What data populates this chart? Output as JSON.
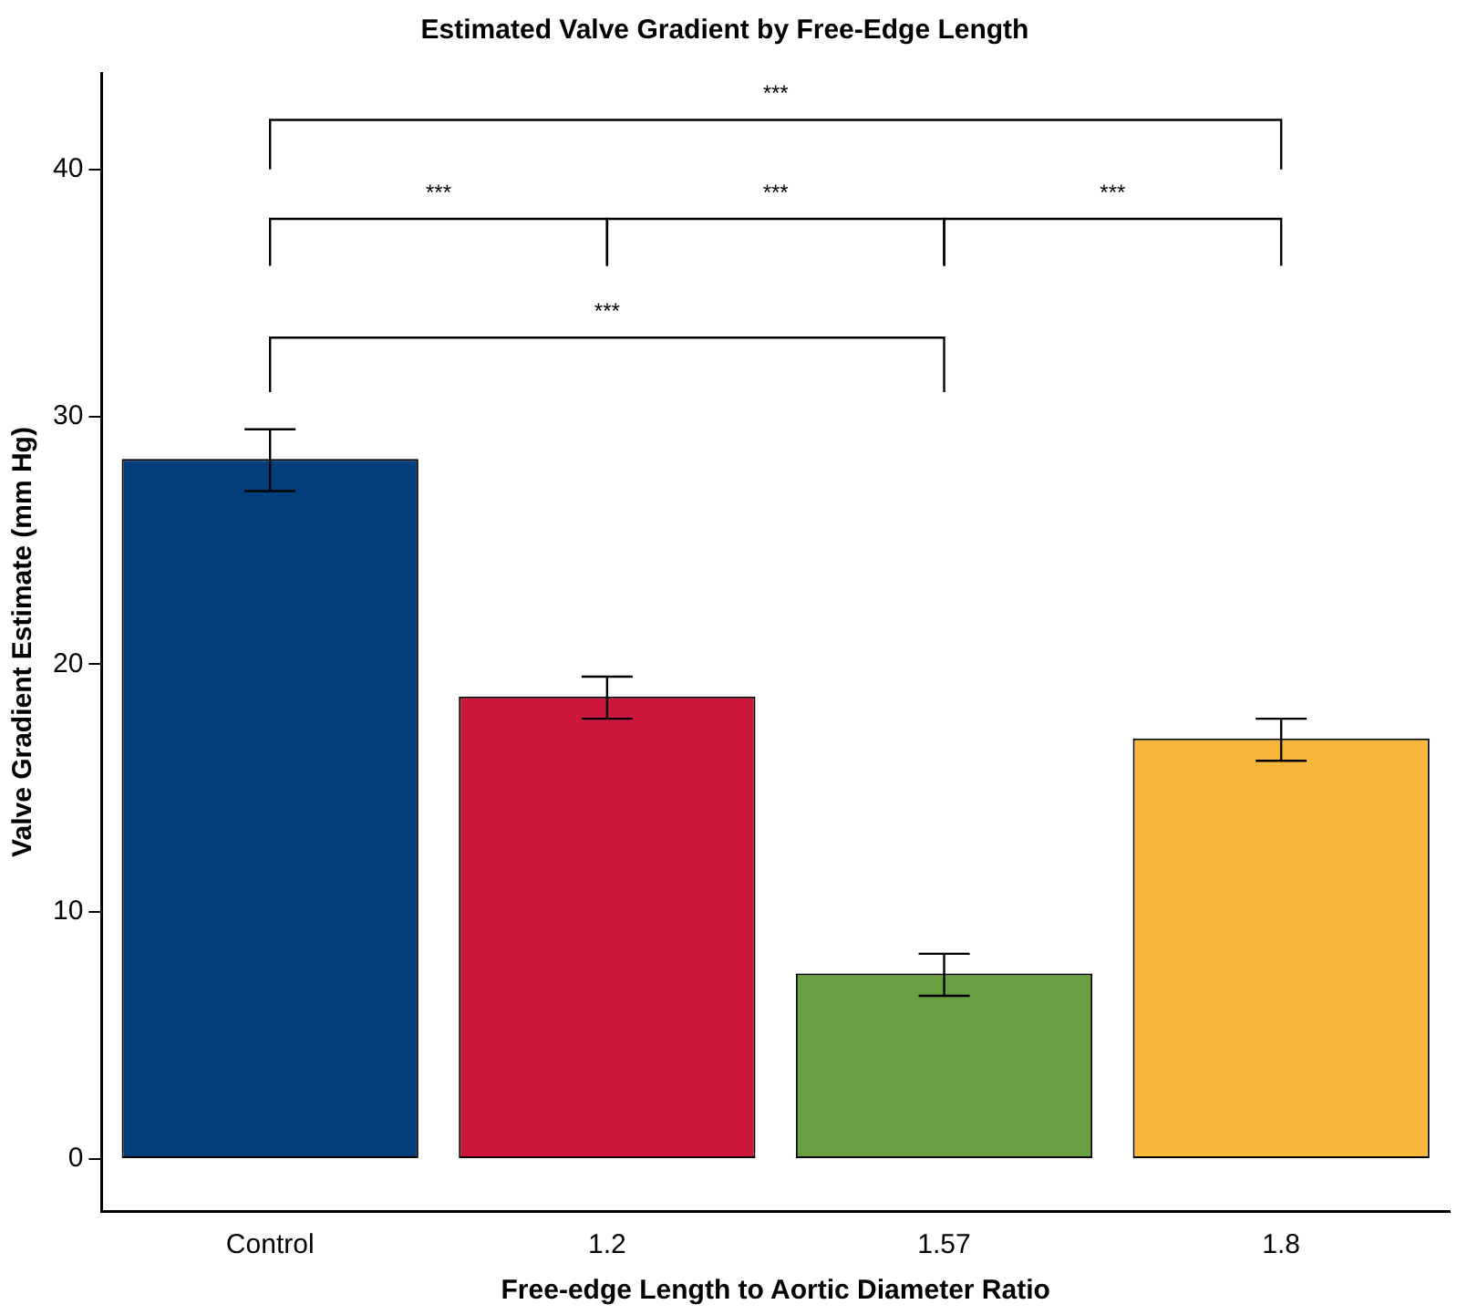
{
  "chart_data": {
    "type": "bar",
    "title": "Estimated Valve Gradient by Free-Edge Length",
    "xlabel": "Free-edge Length to Aortic Diameter Ratio",
    "ylabel": "Valve Gradient Estimate (mm Hg)",
    "categories": [
      "Control",
      "1.2",
      "1.57",
      "1.8"
    ],
    "values": [
      28.3,
      18.7,
      7.5,
      17.0
    ],
    "colors": [
      "#003f7a",
      "#cc163c",
      "#679f41",
      "#f8b63b"
    ],
    "errors": [
      [
        27.0,
        29.5
      ],
      [
        17.8,
        19.5
      ],
      [
        6.6,
        8.3
      ],
      [
        16.1,
        17.8
      ]
    ],
    "ylim": [
      -2.1,
      43.9
    ],
    "yticks": [
      0,
      10,
      20,
      30,
      40
    ],
    "grid": false,
    "legend": false,
    "annotations": [
      "***",
      "***",
      "***",
      "***",
      "***"
    ]
  }
}
